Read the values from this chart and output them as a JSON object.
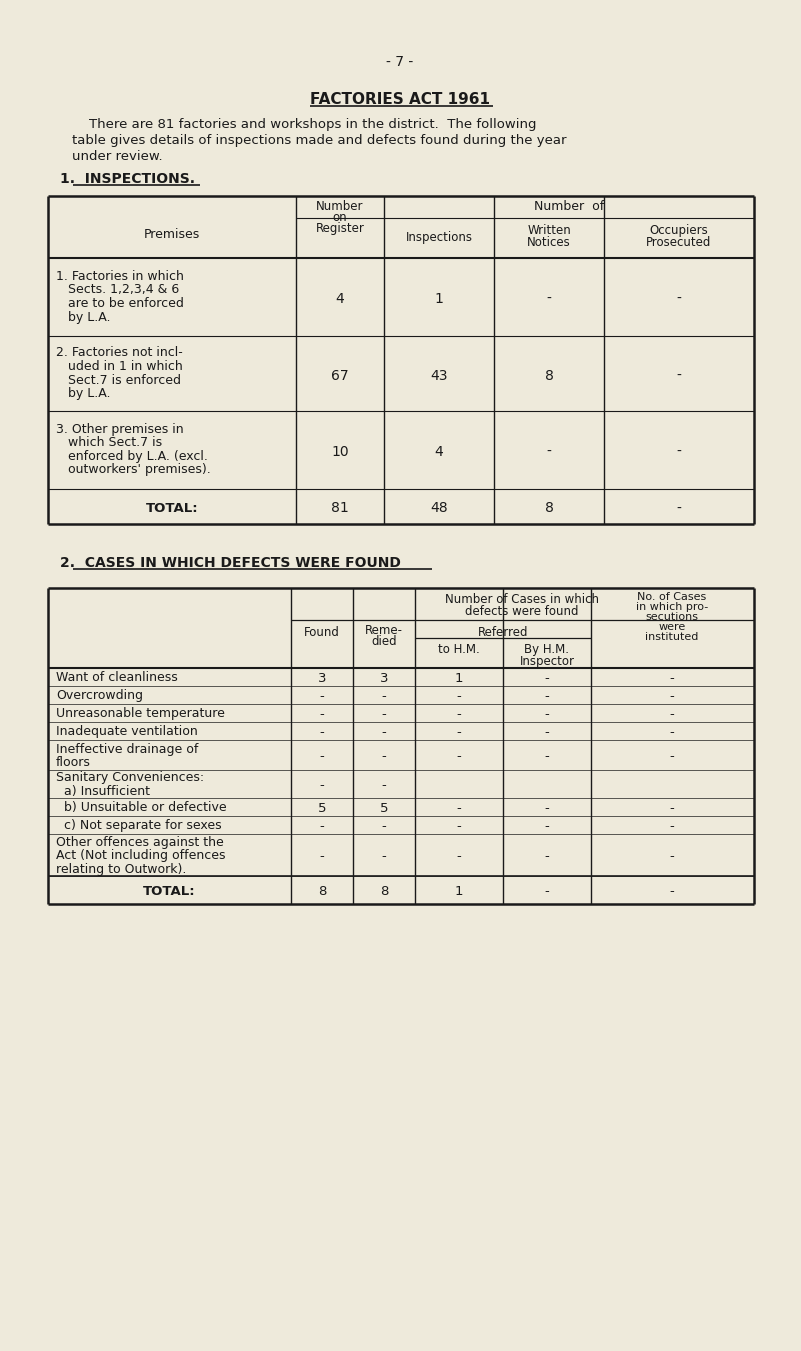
{
  "bg_color": "#eeeadb",
  "page_number": "- 7 -",
  "title": "FACTORIES ACT 1961",
  "intro_line1": "    There are 81 factories and workshops in the district.  The following",
  "intro_line2": "table gives details of inspections made and defects found during the year",
  "intro_line3": "under review.",
  "section1_heading": "1.  INSPECTIONS.",
  "section2_heading": "2.  CASES IN WHICH DEFECTS WERE FOUND",
  "t1_rows": [
    {
      "label_lines": [
        "1. Factories in which",
        "   Sects. 1,2,3,4 & 6",
        "   are to be enforced",
        "   by L.A."
      ],
      "register": "4",
      "inspections": "1",
      "written": "-",
      "occupiers": "-"
    },
    {
      "label_lines": [
        "2. Factories not incl-",
        "   uded in 1 in which",
        "   Sect.7 is enforced",
        "   by L.A."
      ],
      "register": "67",
      "inspections": "43",
      "written": "8",
      "occupiers": "-"
    },
    {
      "label_lines": [
        "3. Other premises in",
        "   which Sect.7 is",
        "   enforced by L.A. (excl.",
        "   outworkers' premises)."
      ],
      "register": "10",
      "inspections": "4",
      "written": "-",
      "occupiers": "-"
    },
    {
      "label_lines": [
        "TOTAL:"
      ],
      "register": "81",
      "inspections": "48",
      "written": "8",
      "occupiers": "-",
      "is_total": true
    }
  ],
  "t2_rows": [
    {
      "label_lines": [
        "Want of cleanliness"
      ],
      "found": "3",
      "remedied": "3",
      "to_hm": "1",
      "by_hm": "-",
      "pros": "-"
    },
    {
      "label_lines": [
        "Overcrowding"
      ],
      "found": "-",
      "remedied": "-",
      "to_hm": "-",
      "by_hm": "-",
      "pros": "-"
    },
    {
      "label_lines": [
        "Unreasonable temperature"
      ],
      "found": "-",
      "remedied": "-",
      "to_hm": "-",
      "by_hm": "-",
      "pros": "-"
    },
    {
      "label_lines": [
        "Inadequate ventilation"
      ],
      "found": "-",
      "remedied": "-",
      "to_hm": "-",
      "by_hm": "-",
      "pros": "-"
    },
    {
      "label_lines": [
        "Ineffective drainage of",
        "floors"
      ],
      "found": "-",
      "remedied": "-",
      "to_hm": "-",
      "by_hm": "-",
      "pros": "-"
    },
    {
      "label_lines": [
        "Sanitary Conveniences:",
        "  a) Insufficient"
      ],
      "found": "-",
      "remedied": "-",
      "to_hm": "",
      "by_hm": "",
      "pros": ""
    },
    {
      "label_lines": [
        "  b) Unsuitable or defective"
      ],
      "found": "5",
      "remedied": "5",
      "to_hm": "-",
      "by_hm": "-",
      "pros": "-"
    },
    {
      "label_lines": [
        "  c) Not separate for sexes"
      ],
      "found": "-",
      "remedied": "-",
      "to_hm": "-",
      "by_hm": "-",
      "pros": "-"
    },
    {
      "label_lines": [
        "Other offences against the",
        "Act (Not including offences",
        "relating to Outwork)."
      ],
      "found": "-",
      "remedied": "-",
      "to_hm": "-",
      "by_hm": "-",
      "pros": "-"
    },
    {
      "label_lines": [
        "TOTAL:"
      ],
      "found": "8",
      "remedied": "8",
      "to_hm": "1",
      "by_hm": "-",
      "pros": "-",
      "is_total": true
    }
  ]
}
